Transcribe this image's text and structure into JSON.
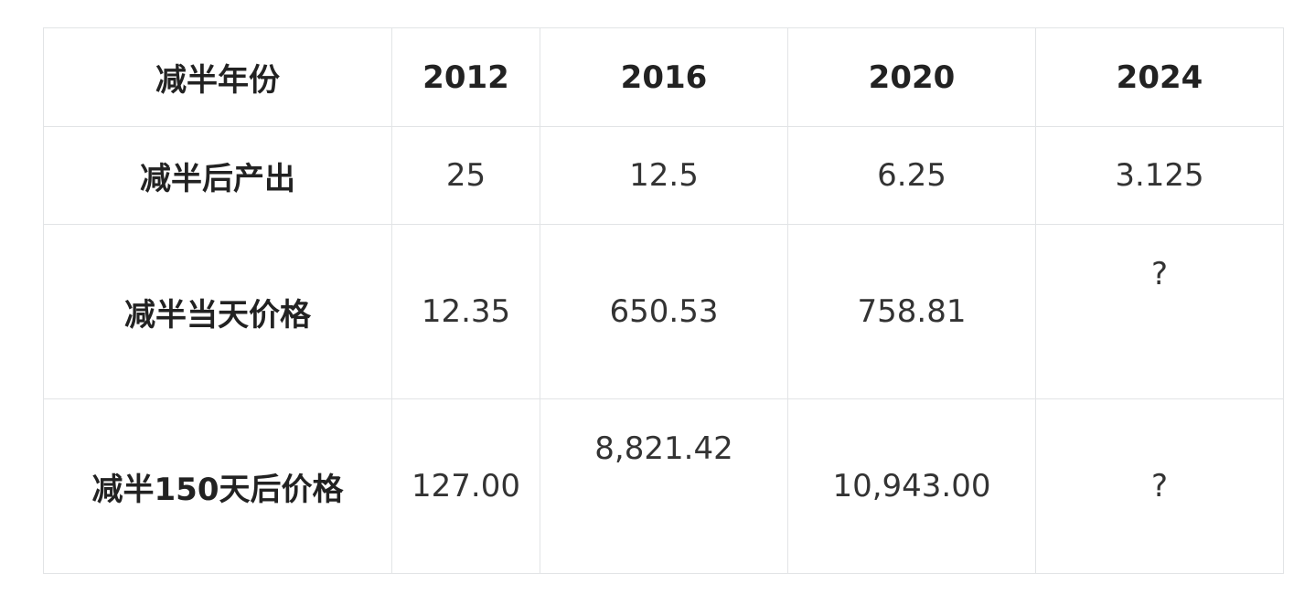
{
  "table": {
    "header": [
      "减半年份",
      "2012",
      "2016",
      "2020",
      "2024"
    ],
    "rows": [
      [
        "减半后产出",
        "25",
        "12.5",
        "6.25",
        "3.125"
      ],
      [
        "减半当天价格",
        "12.35",
        "650.53",
        "758.81",
        "?"
      ],
      [
        "减半150天后价格",
        "127.00",
        "8,821.42",
        "10,943.00",
        "?"
      ]
    ]
  }
}
